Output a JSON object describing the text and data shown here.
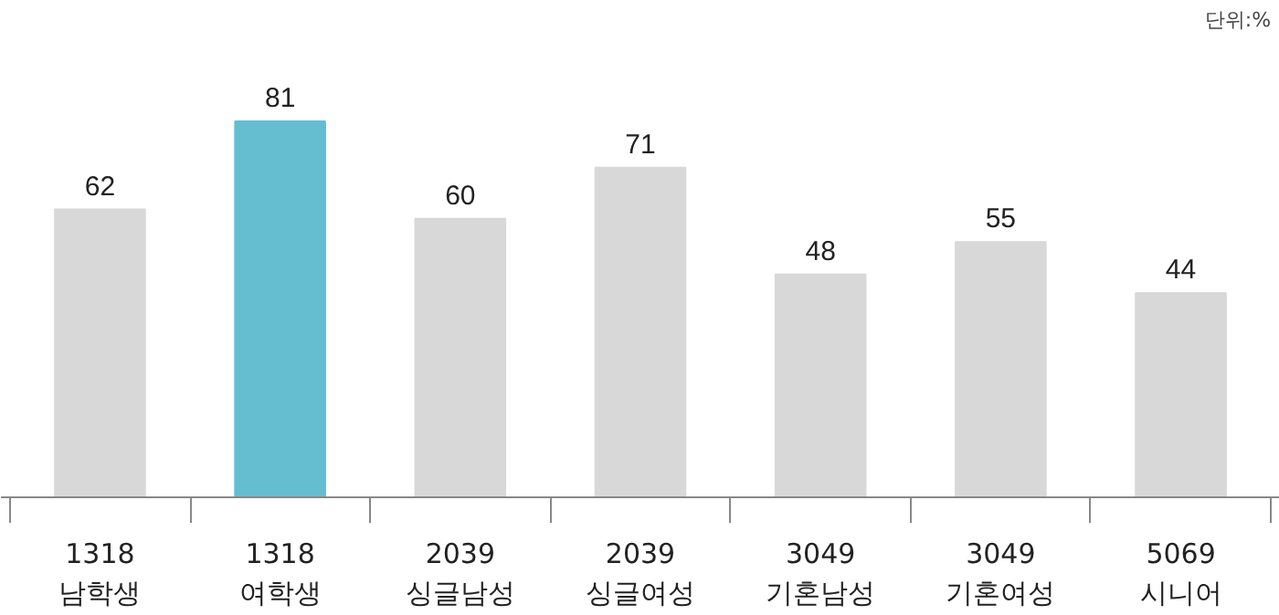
{
  "chart_data": {
    "type": "bar",
    "categories": [
      "1318\n남학생",
      "1318\n여학생",
      "2039\n싱글남성",
      "2039\n싱글여성",
      "3049\n기혼남성",
      "3049\n기혼여성",
      "5069\n시니어"
    ],
    "values": [
      62,
      81,
      60,
      71,
      48,
      55,
      44
    ],
    "colors": [
      "#d9d8d8",
      "#65bdd0",
      "#d9d8d8",
      "#d9d8d8",
      "#d9d8d8",
      "#d9d8d8",
      "#d9d8d8"
    ],
    "data_labels": true,
    "annotations": [
      "단위:%"
    ],
    "tick_labels": "x"
  }
}
